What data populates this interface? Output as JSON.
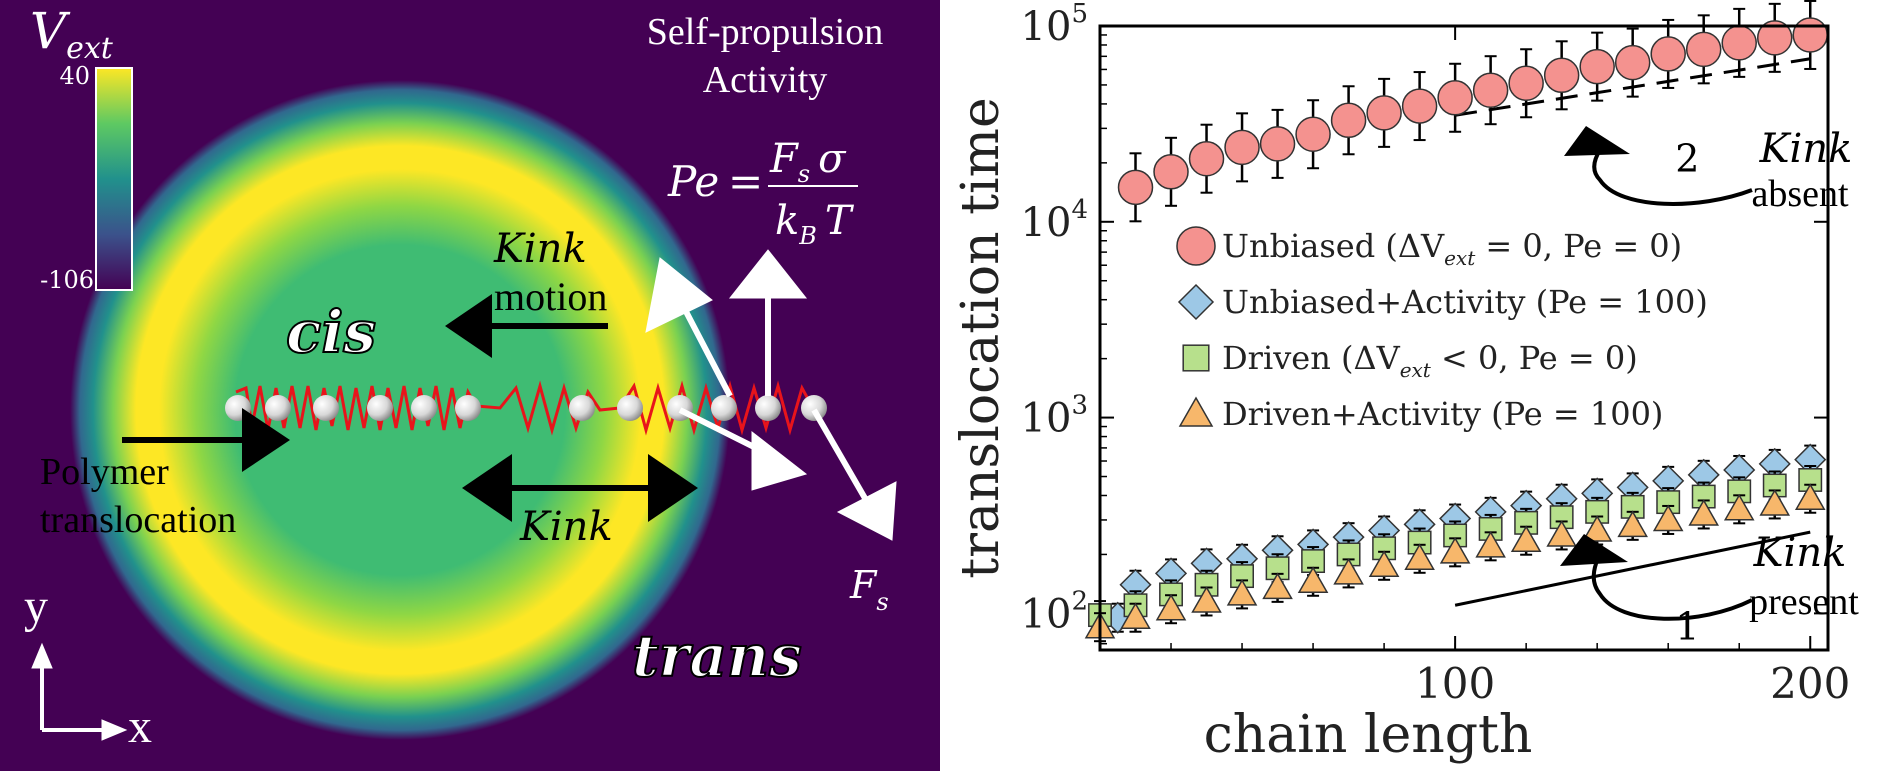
{
  "left_panel": {
    "colorbar": {
      "label_main": "V",
      "label_sub": "ext",
      "max_label": "40",
      "min_label": "-106"
    },
    "labels": {
      "title_line1": "Self-propulsion",
      "title_line2": "Activity",
      "pe_lhs": "Pe",
      "pe_eq": "=",
      "pe_num_F": "F",
      "pe_num_s": "s",
      "pe_num_sigma": "σ",
      "pe_den_k": "k",
      "pe_den_B": "B",
      "pe_den_T": "T",
      "kink_motion_1": "Kink",
      "kink_motion_2": "motion",
      "cis": "cis",
      "trans": "trans",
      "polymer_1": "Polymer",
      "polymer_2": "translocation",
      "kink": "Kink",
      "fs_F": "F",
      "fs_s": "s",
      "axis_y": "y",
      "axis_x": "x"
    },
    "colors": {
      "background": "#440154",
      "polymer_line": "#e8141b",
      "arrow_white": "#ffffff"
    }
  },
  "chart_data": {
    "type": "scatter",
    "title": "",
    "xlabel": "chain length",
    "ylabel": "translocation time",
    "xlim": [
      0,
      205
    ],
    "ylim": [
      65,
      100000
    ],
    "yscale": "log",
    "x_ticks": [
      {
        "value": 100,
        "label": "100"
      },
      {
        "value": 200,
        "label": "200"
      }
    ],
    "y_ticks": [
      {
        "value": 100,
        "base": "10",
        "exp": "2"
      },
      {
        "value": 1000,
        "base": "10",
        "exp": "3"
      },
      {
        "value": 10000,
        "base": "10",
        "exp": "4"
      },
      {
        "value": 100000,
        "base": "10",
        "exp": "5"
      }
    ],
    "series": [
      {
        "name": "Unbiased",
        "legend_label": "Unbiased (ΔV",
        "legend_sub": "ext",
        "legend_rest": " = 0,  Pe = 0)",
        "marker": "circle",
        "color": "#f4928f",
        "x": [
          10,
          20,
          30,
          40,
          50,
          60,
          70,
          80,
          90,
          100,
          110,
          120,
          130,
          140,
          150,
          160,
          170,
          180,
          190,
          200
        ],
        "y": [
          15000,
          18000,
          21000,
          24000,
          25000,
          28000,
          33000,
          36000,
          39000,
          43000,
          47000,
          51000,
          56000,
          62000,
          65000,
          72000,
          76000,
          82000,
          87000,
          90000
        ]
      },
      {
        "name": "Unbiased+Activity",
        "legend_label": "Unbiased+Activity (Pe = 100)",
        "marker": "diamond",
        "color": "#9dc8e6",
        "x": [
          5,
          10,
          20,
          30,
          40,
          50,
          60,
          70,
          80,
          90,
          100,
          110,
          120,
          130,
          140,
          150,
          160,
          170,
          180,
          190,
          200
        ],
        "y": [
          95,
          140,
          160,
          180,
          190,
          210,
          225,
          245,
          265,
          285,
          305,
          330,
          355,
          385,
          410,
          440,
          475,
          510,
          540,
          580,
          610
        ]
      },
      {
        "name": "Driven",
        "legend_label": "Driven (ΔV",
        "legend_sub": "ext",
        "legend_rest": " < 0,  Pe = 0)",
        "marker": "square",
        "color": "#b7e08c",
        "x": [
          0,
          10,
          20,
          30,
          40,
          50,
          60,
          70,
          80,
          90,
          100,
          110,
          120,
          130,
          140,
          150,
          160,
          170,
          180,
          190,
          200
        ],
        "y": [
          98,
          110,
          125,
          140,
          155,
          170,
          185,
          200,
          215,
          230,
          250,
          270,
          290,
          310,
          330,
          350,
          370,
          395,
          420,
          450,
          480
        ]
      },
      {
        "name": "Driven+Activity",
        "legend_label": "Driven+Activity (Pe = 100)",
        "marker": "triangle",
        "color": "#f7b76b",
        "x": [
          0,
          10,
          20,
          30,
          40,
          50,
          60,
          70,
          80,
          90,
          100,
          110,
          120,
          130,
          140,
          150,
          160,
          170,
          180,
          190,
          200
        ],
        "y": [
          85,
          95,
          105,
          115,
          125,
          135,
          145,
          160,
          175,
          190,
          205,
          220,
          235,
          250,
          265,
          280,
          300,
          320,
          340,
          360,
          385
        ]
      }
    ],
    "reference_lines": [
      {
        "style": "dashed",
        "slope_label": "2",
        "x": [
          100,
          200
        ],
        "y": [
          35000,
          68000
        ]
      },
      {
        "style": "solid",
        "slope_label": "1",
        "x": [
          100,
          200
        ],
        "y": [
          110,
          260
        ]
      }
    ],
    "annotations": {
      "top_1": "Kink",
      "top_2": "absent",
      "bottom_1": "Kink",
      "bottom_2": "present"
    }
  }
}
